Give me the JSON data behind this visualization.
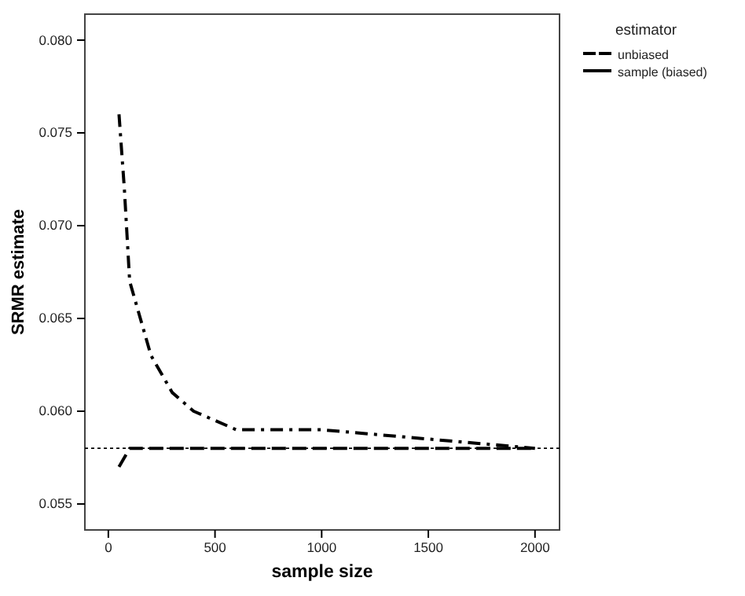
{
  "chart_data": {
    "type": "line",
    "xlabel": "sample size",
    "ylabel": "SRMR estimate",
    "legend_title": "estimator",
    "legend": "top right",
    "grid": false,
    "marker": "none",
    "xlim": [
      -110,
      2115
    ],
    "xticks": [
      0,
      500,
      1000,
      1500,
      2000
    ],
    "ylim": [
      0.0536,
      0.0814
    ],
    "yticks": [
      {
        "value": 0.055,
        "label": "0.055"
      },
      {
        "value": 0.06,
        "label": "0.060"
      },
      {
        "value": 0.065,
        "label": "0.065"
      },
      {
        "value": 0.07,
        "label": "0.070"
      },
      {
        "value": 0.075,
        "label": "0.075"
      },
      {
        "value": 0.08,
        "label": "0.080"
      }
    ],
    "ref_lines": [
      {
        "axis": "y",
        "value": 0.058,
        "line_style": "dotted",
        "color": "#000000"
      }
    ],
    "series": [
      {
        "name": "unbiased",
        "color": "#000000",
        "line_style": "dashed",
        "x": [
          50,
          100,
          200,
          500,
          1000,
          1500,
          2000
        ],
        "values": [
          0.057,
          0.058,
          0.058,
          0.058,
          0.058,
          0.058,
          0.058
        ]
      },
      {
        "name": "sample (biased)",
        "color": "#000000",
        "line_style": "dashed",
        "x": [
          50,
          75,
          100,
          150,
          200,
          300,
          400,
          500,
          600,
          1000,
          1500,
          2000
        ],
        "values": [
          0.076,
          0.072,
          0.067,
          0.065,
          0.063,
          0.061,
          0.06,
          0.0595,
          0.059,
          0.059,
          0.0585,
          0.058
        ]
      }
    ]
  }
}
